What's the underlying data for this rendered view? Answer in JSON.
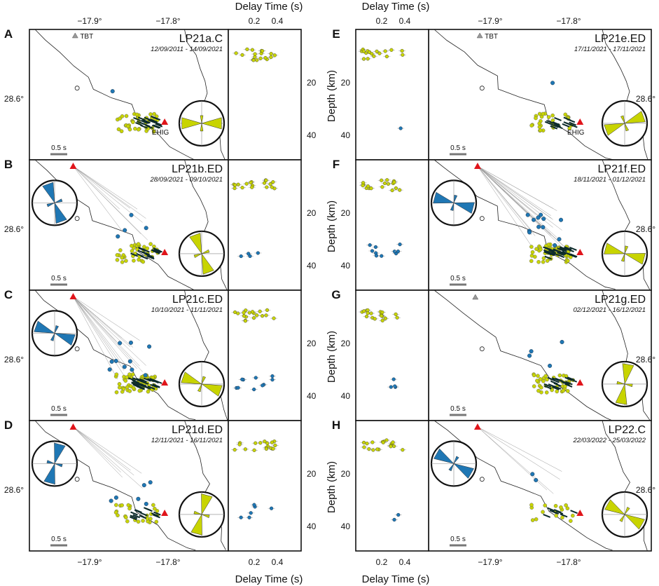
{
  "axes": {
    "top_delay_label": "Delay Time (s)",
    "bottom_delay_label": "Delay Time (s)",
    "depth_label": "Depth (km)",
    "lon_ticks": [
      "−17.9°",
      "−17.8°"
    ],
    "lat_tick": "28.6°",
    "delay_ticks": [
      "0.2",
      "0.4"
    ],
    "depth_ticks": [
      "20",
      "40"
    ],
    "scale_bar": "0.5 s"
  },
  "stations": {
    "tbt": "TBT",
    "ehig": "EHIG"
  },
  "colors": {
    "shallow": "#c8d400",
    "deep": "#1f77b4",
    "bars": "#0d2b2b",
    "station": "#e0151b",
    "tbt": "#999999"
  },
  "panels": [
    {
      "letter": "A",
      "name": "LP21a.C",
      "dates": "12/09/2011 - 14/09/2021"
    },
    {
      "letter": "B",
      "name": "LP21b.ED",
      "dates": "28/09/2021 - 09/10/2021"
    },
    {
      "letter": "C",
      "name": "LP21c.ED",
      "dates": "10/10/2021 - 11/11/2021"
    },
    {
      "letter": "D",
      "name": "LP21d.ED",
      "dates": "12/11/2021 - 16/11/2021"
    },
    {
      "letter": "E",
      "name": "LP21e.ED",
      "dates": "17/11/2021 - 17/11/2021"
    },
    {
      "letter": "F",
      "name": "LP21f.ED",
      "dates": "18/11/2021 - 01/12/2021"
    },
    {
      "letter": "G",
      "name": "LP21g.ED",
      "dates": "02/12/2021 - 16/12/2021"
    },
    {
      "letter": "H",
      "name": "LP22.C",
      "dates": "22/03/2022 - 25/03/2022"
    }
  ]
}
